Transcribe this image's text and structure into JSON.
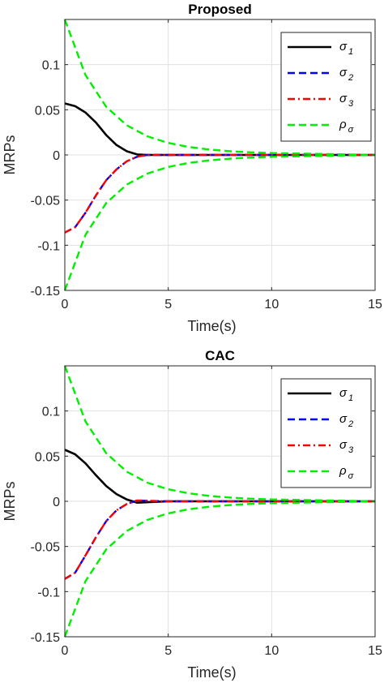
{
  "chart_data": [
    {
      "type": "line",
      "title": "Proposed",
      "xlabel": "Time(s)",
      "ylabel": "MRPs",
      "xlim": [
        0,
        15
      ],
      "ylim": [
        -0.15,
        0.15
      ],
      "xticks": [
        "0",
        "5",
        "10",
        "15"
      ],
      "yticks": [
        "0.1",
        "0.05",
        "0",
        "-0.05",
        "-0.1",
        "-0.15"
      ],
      "grid": true,
      "legend_position": "top-right",
      "series": [
        {
          "name": "σ₁",
          "legend_base": "σ",
          "legend_sub": "1",
          "color": "#000000",
          "style": "solid",
          "x": [
            0,
            0.5,
            1,
            1.5,
            2,
            2.5,
            3,
            3.5,
            4,
            5,
            15
          ],
          "y": [
            0.057,
            0.054,
            0.047,
            0.036,
            0.022,
            0.011,
            0.004,
            0.0005,
            0,
            0,
            0
          ]
        },
        {
          "name": "σ₂",
          "legend_base": "σ",
          "legend_sub": "2",
          "color": "#0000ff",
          "style": "dashed",
          "x": [
            0,
            0.5,
            1,
            1.5,
            2,
            2.5,
            3,
            3.5,
            4,
            5,
            15
          ],
          "y": [
            -0.086,
            -0.08,
            -0.064,
            -0.045,
            -0.028,
            -0.016,
            -0.007,
            -0.002,
            0,
            0,
            0
          ]
        },
        {
          "name": "σ₃",
          "legend_base": "σ",
          "legend_sub": "3",
          "color": "#ff0000",
          "style": "dashdot",
          "x": [
            0,
            0.5,
            1,
            1.5,
            2,
            2.5,
            3,
            3.5,
            4,
            5,
            15
          ],
          "y": [
            -0.086,
            -0.08,
            -0.064,
            -0.045,
            -0.028,
            -0.016,
            -0.007,
            -0.002,
            0,
            0,
            0
          ]
        },
        {
          "name": "ρσ",
          "legend_base": "ρ",
          "legend_sub": "σ",
          "color": "#00ee00",
          "style": "dashed",
          "x": [
            0,
            1,
            2,
            3,
            4,
            5,
            6,
            7,
            8,
            9,
            10,
            15
          ],
          "y": [
            0.15,
            0.0885,
            0.0533,
            0.0328,
            0.0206,
            0.0133,
            0.0088,
            0.0059,
            0.0041,
            0.0029,
            0.0021,
            0
          ],
          "mirror": true
        }
      ]
    },
    {
      "type": "line",
      "title": "CAC",
      "xlabel": "Time(s)",
      "ylabel": "MRPs",
      "xlim": [
        0,
        15
      ],
      "ylim": [
        -0.15,
        0.15
      ],
      "xticks": [
        "0",
        "5",
        "10",
        "15"
      ],
      "yticks": [
        "0.1",
        "0.05",
        "0",
        "-0.05",
        "-0.1",
        "-0.15"
      ],
      "grid": true,
      "legend_position": "top-right",
      "series": [
        {
          "name": "σ₁",
          "legend_base": "σ",
          "legend_sub": "1",
          "color": "#000000",
          "style": "solid",
          "x": [
            0,
            0.5,
            1,
            1.5,
            2,
            2.5,
            3,
            3.5,
            4,
            5,
            15
          ],
          "y": [
            0.057,
            0.052,
            0.042,
            0.029,
            0.017,
            0.008,
            0.002,
            -0.0015,
            -0.001,
            0,
            0
          ]
        },
        {
          "name": "σ₂",
          "legend_base": "σ",
          "legend_sub": "2",
          "color": "#0000ff",
          "style": "dashed",
          "x": [
            0,
            0.5,
            1,
            1.5,
            2,
            2.5,
            3,
            3.5,
            4,
            5,
            15
          ],
          "y": [
            -0.086,
            -0.079,
            -0.06,
            -0.04,
            -0.022,
            -0.01,
            -0.003,
            0.001,
            0.0005,
            0,
            0
          ]
        },
        {
          "name": "σ₃",
          "legend_base": "σ",
          "legend_sub": "3",
          "color": "#ff0000",
          "style": "dashdot",
          "x": [
            0,
            0.5,
            1,
            1.5,
            2,
            2.5,
            3,
            3.5,
            4,
            5,
            15
          ],
          "y": [
            -0.086,
            -0.079,
            -0.06,
            -0.04,
            -0.022,
            -0.01,
            -0.003,
            0.001,
            0.0005,
            0,
            0
          ]
        },
        {
          "name": "ρσ",
          "legend_base": "ρ",
          "legend_sub": "σ",
          "color": "#00ee00",
          "style": "dashed",
          "x": [
            0,
            1,
            2,
            3,
            4,
            5,
            6,
            7,
            8,
            9,
            10,
            15
          ],
          "y": [
            0.15,
            0.0885,
            0.0533,
            0.0328,
            0.0206,
            0.0133,
            0.0088,
            0.0059,
            0.0041,
            0.0029,
            0.0021,
            0
          ],
          "mirror": true
        }
      ]
    }
  ]
}
